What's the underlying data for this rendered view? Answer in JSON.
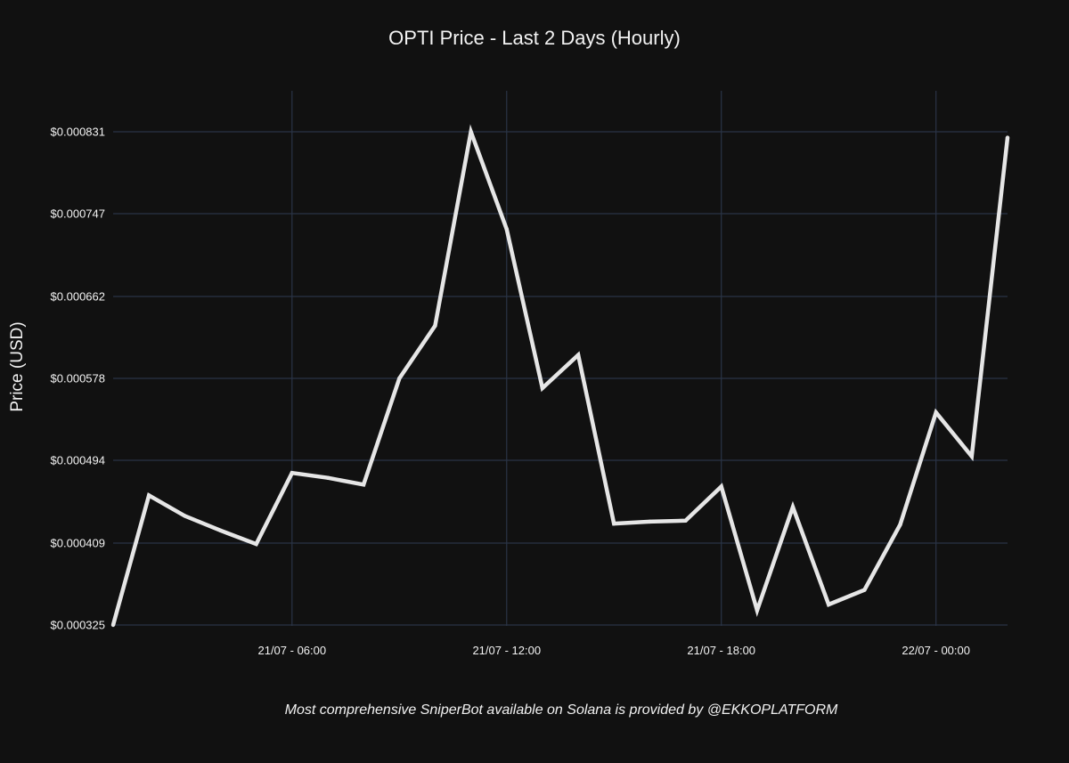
{
  "chart_data": {
    "type": "line",
    "title": "OPTI Price - Last 2 Days (Hourly)",
    "ylabel": "Price (USD)",
    "xlabel": "",
    "footer": "Most comprehensive SniperBot available on Solana is provided by @EKKOPLATFORM",
    "x_ticks": [
      {
        "hour": 6,
        "label": "21/07 - 06:00"
      },
      {
        "hour": 12,
        "label": "21/07 - 12:00"
      },
      {
        "hour": 18,
        "label": "21/07 - 18:00"
      },
      {
        "hour": 24,
        "label": "22/07 - 00:00"
      }
    ],
    "y_ticks": [
      {
        "value": 0.000325,
        "label": "$0.000325"
      },
      {
        "value": 0.000409,
        "label": "$0.000409"
      },
      {
        "value": 0.000494,
        "label": "$0.000494"
      },
      {
        "value": 0.000578,
        "label": "$0.000578"
      },
      {
        "value": 0.000662,
        "label": "$0.000662"
      },
      {
        "value": 0.000747,
        "label": "$0.000747"
      },
      {
        "value": 0.000831,
        "label": "$0.000831"
      }
    ],
    "xlim": [
      1,
      26
    ],
    "ylim": [
      0.000325,
      0.000831
    ],
    "grid": true,
    "line_color": "#e6e6e6",
    "grid_color": "#2a3446",
    "series": [
      {
        "hours": [
          1,
          2,
          3,
          4,
          5,
          6,
          7,
          8,
          9,
          10,
          11,
          12,
          13,
          14,
          15,
          16,
          17,
          18,
          19,
          20,
          21,
          22,
          23,
          24,
          25,
          26
        ],
        "values": [
          0.000325,
          0.000458,
          0.000437,
          0.000422,
          0.000408,
          0.000481,
          0.000476,
          0.000469,
          0.000578,
          0.000632,
          0.000831,
          0.000731,
          0.000568,
          0.000602,
          0.000429,
          0.000431,
          0.000432,
          0.000467,
          0.00034,
          0.000446,
          0.000346,
          0.000361,
          0.000428,
          0.000543,
          0.000498,
          0.000825
        ]
      }
    ]
  }
}
